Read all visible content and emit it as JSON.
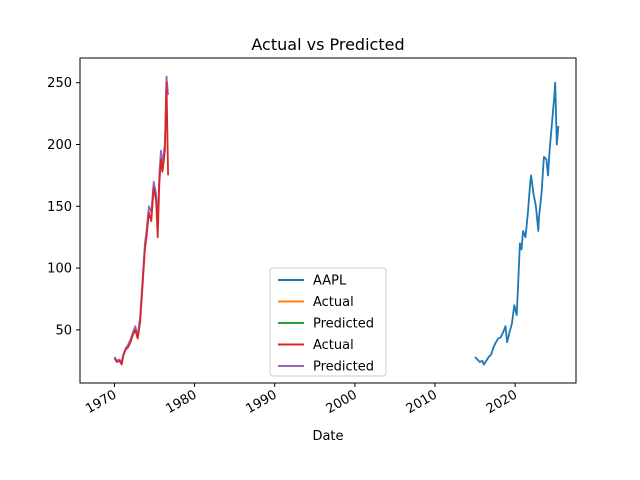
{
  "chart_data": {
    "type": "line",
    "title": "Actual vs Predicted",
    "xlabel": "Date",
    "ylabel": "",
    "xlim": [
      1965.7,
      2027.6
    ],
    "ylim": [
      7,
      270
    ],
    "x_ticks": [
      "1970",
      "1980",
      "1990",
      "2000",
      "2010",
      "2020"
    ],
    "y_ticks": [
      50,
      100,
      150,
      200,
      250
    ],
    "grid": false,
    "legend_position": "lower center",
    "legend": [
      {
        "name": "AAPL",
        "color": "#1f77b4"
      },
      {
        "name": "Actual",
        "color": "#ff7f0e"
      },
      {
        "name": "Predicted",
        "color": "#2ca02c"
      },
      {
        "name": "Actual",
        "color": "#d62728"
      },
      {
        "name": "Predicted",
        "color": "#9467bd"
      }
    ],
    "series": [
      {
        "name": "AAPL",
        "color": "#1f77b4",
        "x": [
          2015.0,
          2015.3,
          2015.6,
          2015.9,
          2016.1,
          2016.4,
          2016.7,
          2017.0,
          2017.3,
          2017.6,
          2017.9,
          2018.2,
          2018.5,
          2018.8,
          2019.0,
          2019.3,
          2019.6,
          2019.9,
          2020.2,
          2020.4,
          2020.6,
          2020.8,
          2021.0,
          2021.3,
          2021.6,
          2021.9,
          2022.0,
          2022.3,
          2022.6,
          2022.9,
          2023.0,
          2023.3,
          2023.6,
          2023.9,
          2024.1,
          2024.3,
          2024.5,
          2024.7,
          2024.9,
          2025.0,
          2025.2,
          2025.4
        ],
        "y": [
          28,
          26,
          24,
          25,
          22,
          25,
          28,
          30,
          36,
          40,
          43,
          44,
          48,
          53,
          40,
          48,
          55,
          70,
          62,
          90,
          120,
          115,
          130,
          125,
          145,
          170,
          175,
          160,
          150,
          130,
          142,
          160,
          190,
          188,
          175,
          195,
          210,
          225,
          240,
          250,
          200,
          215
        ]
      },
      {
        "name": "Predicted",
        "color": "#9467bd",
        "x": [
          1970.0,
          1970.3,
          1970.6,
          1970.9,
          1971.1,
          1971.4,
          1971.7,
          1972.0,
          1972.3,
          1972.6,
          1972.9,
          1973.2,
          1973.5,
          1973.8,
          1974.0,
          1974.3,
          1974.6,
          1974.9,
          1975.2,
          1975.4,
          1975.6,
          1975.8,
          1976.0,
          1976.3,
          1976.5,
          1976.7
        ],
        "y": [
          28,
          25,
          26,
          24,
          30,
          35,
          38,
          42,
          48,
          53,
          45,
          60,
          90,
          120,
          130,
          150,
          145,
          170,
          160,
          135,
          175,
          195,
          185,
          200,
          255,
          240
        ]
      },
      {
        "name": "Actual",
        "color": "#d62728",
        "x": [
          1970.0,
          1970.3,
          1970.6,
          1970.9,
          1971.1,
          1971.4,
          1971.7,
          1972.0,
          1972.3,
          1972.6,
          1972.9,
          1973.2,
          1973.5,
          1973.8,
          1974.0,
          1974.3,
          1974.6,
          1974.9,
          1975.2,
          1975.4,
          1975.6,
          1975.8,
          1976.0,
          1976.3,
          1976.5,
          1976.7
        ],
        "y": [
          27,
          24,
          25,
          22,
          29,
          34,
          36,
          40,
          46,
          50,
          43,
          56,
          85,
          115,
          125,
          145,
          138,
          165,
          155,
          125,
          168,
          188,
          178,
          195,
          250,
          175
        ]
      }
    ]
  }
}
